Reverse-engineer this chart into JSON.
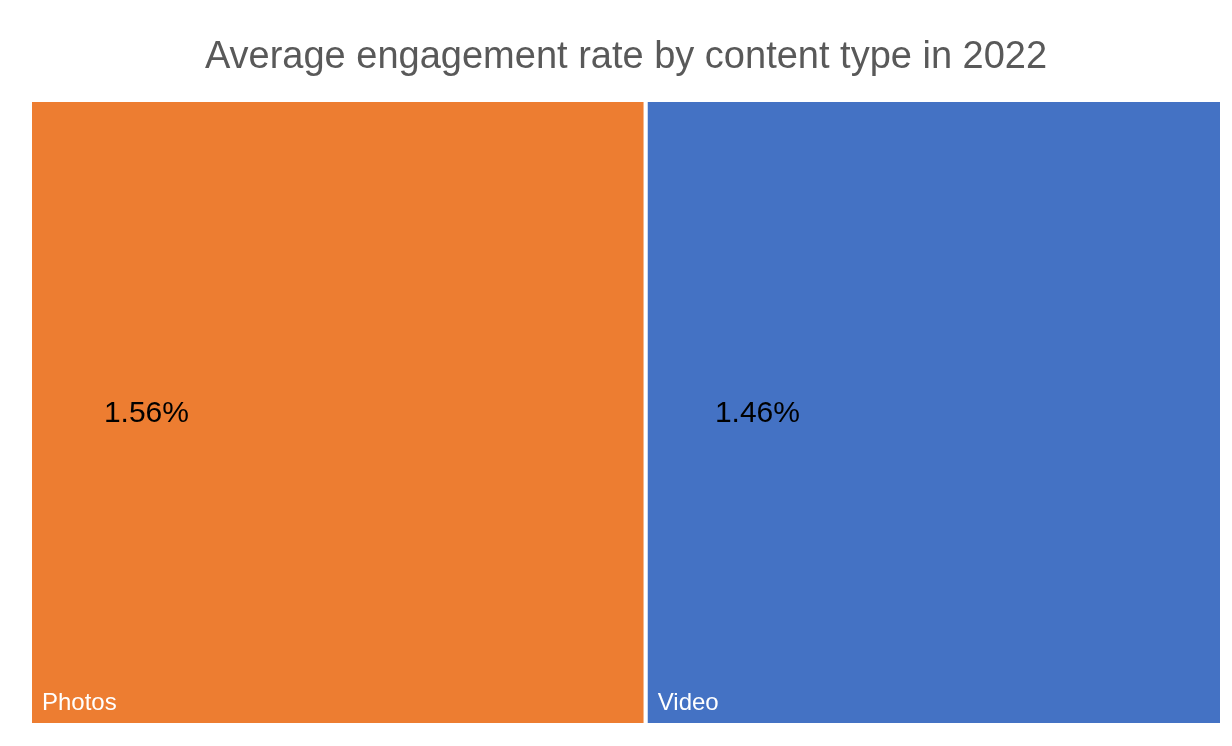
{
  "chart_data": {
    "type": "other",
    "title": "Average engagement rate by content type in 2022",
    "categories": [
      "Photos",
      "Video"
    ],
    "values": [
      1.56,
      1.46
    ],
    "colors": [
      "#ed7d31",
      "#4472c4"
    ],
    "value_labels": [
      "1.56%",
      "1.46%"
    ]
  }
}
